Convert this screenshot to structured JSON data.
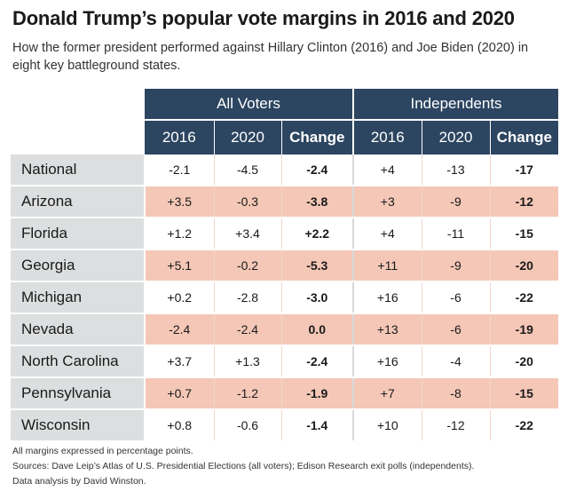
{
  "title": "Donald Trump’s popular vote margins in 2016 and 2020",
  "subtitle": "How the former president performed against Hillary Clinton (2016) and Joe Biden (2020) in eight key battleground states.",
  "table": {
    "group_headers": {
      "all_voters": "All Voters",
      "independents": "Independents"
    },
    "col_headers": {
      "y2016": "2016",
      "y2020": "2020",
      "change": "Change"
    },
    "rows": [
      {
        "state": "National",
        "all": [
          "-2.1",
          "-4.5",
          "-2.4"
        ],
        "ind": [
          "+4",
          "-13",
          "-17"
        ]
      },
      {
        "state": "Arizona",
        "all": [
          "+3.5",
          "-0.3",
          "-3.8"
        ],
        "ind": [
          "+3",
          "-9",
          "-12"
        ]
      },
      {
        "state": "Florida",
        "all": [
          "+1.2",
          "+3.4",
          "+2.2"
        ],
        "ind": [
          "+4",
          "-11",
          "-15"
        ]
      },
      {
        "state": "Georgia",
        "all": [
          "+5.1",
          "-0.2",
          "-5.3"
        ],
        "ind": [
          "+11",
          "-9",
          "-20"
        ]
      },
      {
        "state": "Michigan",
        "all": [
          "+0.2",
          "-2.8",
          "-3.0"
        ],
        "ind": [
          "+16",
          "-6",
          "-22"
        ]
      },
      {
        "state": "Nevada",
        "all": [
          "-2.4",
          "-2.4",
          "0.0"
        ],
        "ind": [
          "+13",
          "-6",
          "-19"
        ]
      },
      {
        "state": "North Carolina",
        "all": [
          "+3.7",
          "+1.3",
          "-2.4"
        ],
        "ind": [
          "+16",
          "-4",
          "-20"
        ]
      },
      {
        "state": "Pennsylvania",
        "all": [
          "+0.7",
          "-1.2",
          "-1.9"
        ],
        "ind": [
          "+7",
          "-8",
          "-15"
        ]
      },
      {
        "state": "Wisconsin",
        "all": [
          "+0.8",
          "-0.6",
          "-1.4"
        ],
        "ind": [
          "+10",
          "-12",
          "-22"
        ]
      }
    ]
  },
  "footnotes": {
    "units": "All margins expressed in percentage points.",
    "sources": "Sources: Dave Leip’s Atlas of U.S. Presidential Elections (all voters); Edison Research exit polls (independents).",
    "analysis": "Data analysis by David Winston."
  },
  "colors": {
    "header_bg": "#2c4560",
    "shaded_row": "#f4c7b6",
    "state_col_bg": "#dcdedf"
  }
}
